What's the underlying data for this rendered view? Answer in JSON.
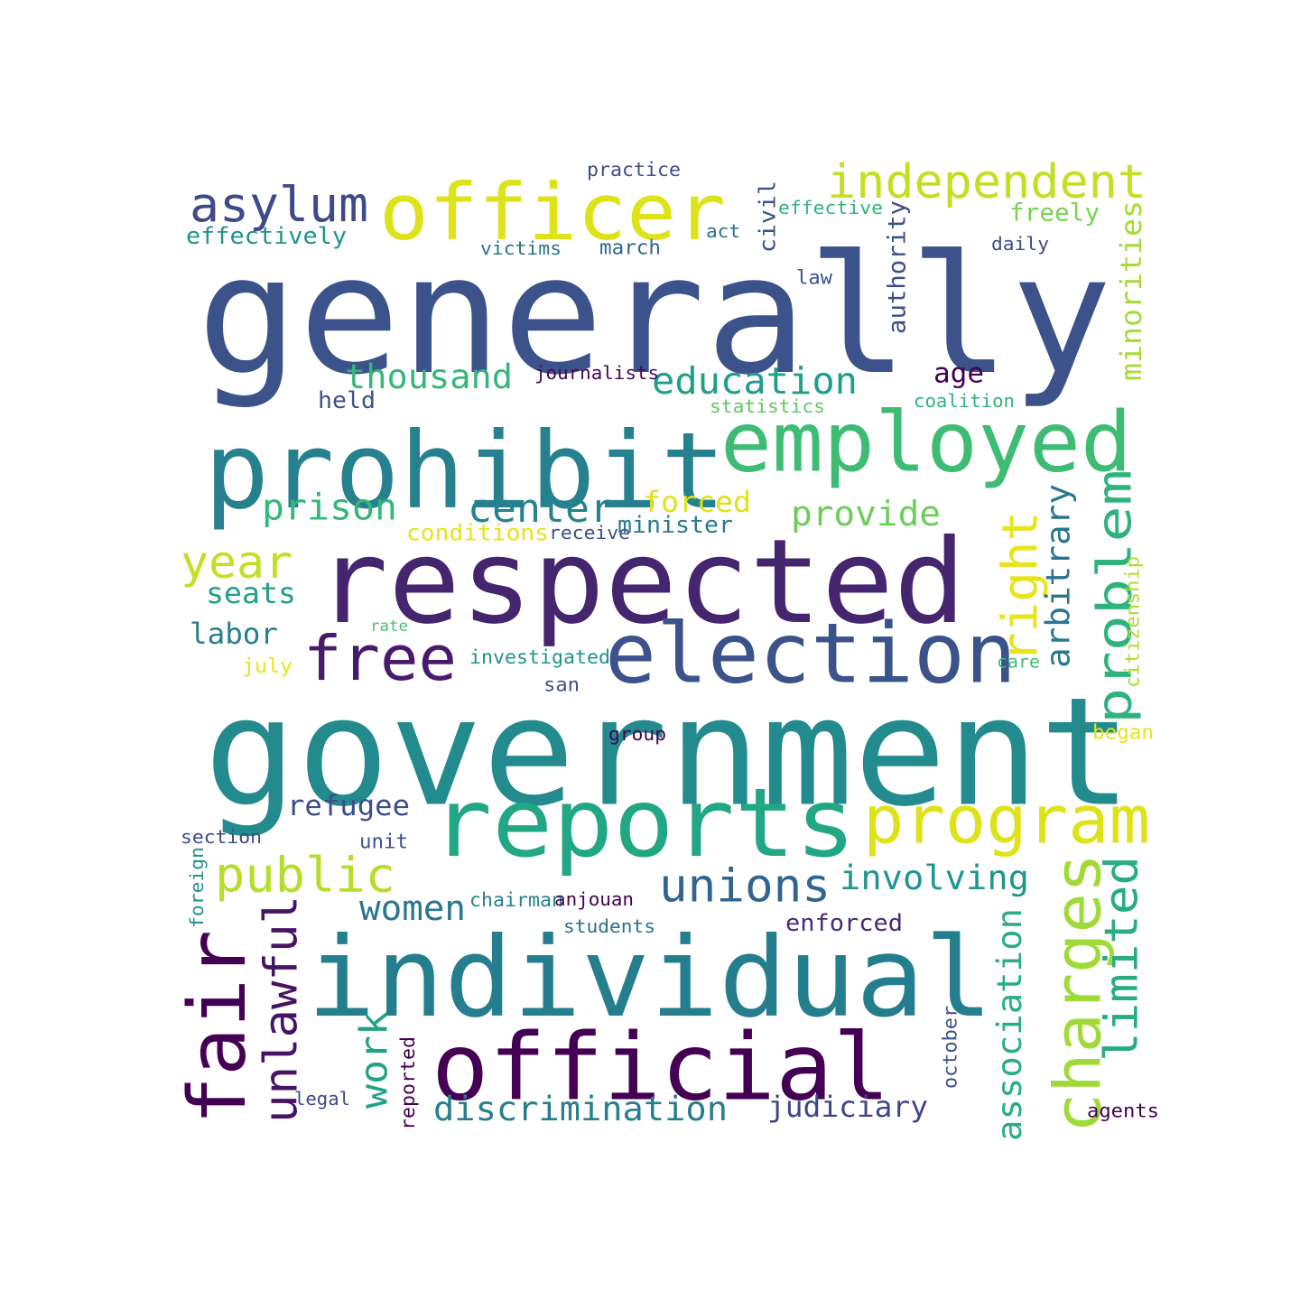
{
  "words": [
    {
      "text": "generally",
      "color": "#3b528b"
    },
    {
      "text": "government",
      "color": "#238a8d"
    },
    {
      "text": "respected",
      "color": "#46256f"
    },
    {
      "text": "individual",
      "color": "#257e8e"
    },
    {
      "text": "prohibit",
      "color": "#26818e"
    },
    {
      "text": "officer",
      "color": "#dde318"
    },
    {
      "text": "employed",
      "color": "#3fbc73"
    },
    {
      "text": "election",
      "color": "#3b528b"
    },
    {
      "text": "reports",
      "color": "#22a784"
    },
    {
      "text": "official",
      "color": "#440154"
    },
    {
      "text": "program",
      "color": "#dde318"
    },
    {
      "text": "fair",
      "color": "#440154"
    },
    {
      "text": "charges",
      "color": "#a0da39"
    },
    {
      "text": "free",
      "color": "#481a6c"
    },
    {
      "text": "independent",
      "color": "#c2df23"
    },
    {
      "text": "asylum",
      "color": "#3e4a89"
    },
    {
      "text": "public",
      "color": "#b5de2b"
    },
    {
      "text": "year",
      "color": "#c2df23"
    },
    {
      "text": "center",
      "color": "#25838e"
    },
    {
      "text": "unions",
      "color": "#32658e"
    },
    {
      "text": "unlawful",
      "color": "#471365"
    },
    {
      "text": "problem",
      "color": "#2eb37c"
    },
    {
      "text": "right",
      "color": "#e7e419"
    },
    {
      "text": "limited",
      "color": "#27ad81"
    },
    {
      "text": "association",
      "color": "#29af7f"
    },
    {
      "text": "education",
      "color": "#1f9e89"
    },
    {
      "text": "thousand",
      "color": "#35b779"
    },
    {
      "text": "prison",
      "color": "#35b779"
    },
    {
      "text": "provide",
      "color": "#6ccd5a"
    },
    {
      "text": "involving",
      "color": "#1f968b"
    },
    {
      "text": "discrimination",
      "color": "#277f8e"
    },
    {
      "text": "judiciary",
      "color": "#414487"
    },
    {
      "text": "women",
      "color": "#2a768e"
    },
    {
      "text": "work",
      "color": "#20a386"
    },
    {
      "text": "arbitrary",
      "color": "#2a768e"
    },
    {
      "text": "minorities",
      "color": "#a5db36"
    },
    {
      "text": "authority",
      "color": "#3e4c8a"
    },
    {
      "text": "refugee",
      "color": "#3e4c8a"
    },
    {
      "text": "seats",
      "color": "#1fa088"
    },
    {
      "text": "labor",
      "color": "#287d8e"
    },
    {
      "text": "effectively",
      "color": "#20938c"
    },
    {
      "text": "freely",
      "color": "#7ad151"
    },
    {
      "text": "forced",
      "color": "#dde318"
    },
    {
      "text": "minister",
      "color": "#287c8e"
    },
    {
      "text": "enforced",
      "color": "#482878"
    },
    {
      "text": "held",
      "color": "#3b528b"
    },
    {
      "text": "age",
      "color": "#440154"
    },
    {
      "text": "civil",
      "color": "#3b528b"
    },
    {
      "text": "practice",
      "color": "#3e4c8a"
    },
    {
      "text": "effective",
      "color": "#2fb47c"
    },
    {
      "text": "victims",
      "color": "#2c728e"
    },
    {
      "text": "march",
      "color": "#31688e"
    },
    {
      "text": "act",
      "color": "#2c718e"
    },
    {
      "text": "daily",
      "color": "#3e4c8a"
    },
    {
      "text": "law",
      "color": "#3b528b"
    },
    {
      "text": "journalists",
      "color": "#46075a"
    },
    {
      "text": "statistics",
      "color": "#5ec962"
    },
    {
      "text": "coalition",
      "color": "#2fb47c"
    },
    {
      "text": "conditions",
      "color": "#e7e419"
    },
    {
      "text": "receive",
      "color": "#3b528b"
    },
    {
      "text": "citizenship",
      "color": "#addc30"
    },
    {
      "text": "rate",
      "color": "#4ac16d"
    },
    {
      "text": "investigated",
      "color": "#20938c"
    },
    {
      "text": "july",
      "color": "#e7e419"
    },
    {
      "text": "care",
      "color": "#3dbc74"
    },
    {
      "text": "san",
      "color": "#3b528b"
    },
    {
      "text": "group",
      "color": "#440154"
    },
    {
      "text": "began",
      "color": "#e7e419"
    },
    {
      "text": "section",
      "color": "#3e4a89"
    },
    {
      "text": "unit",
      "color": "#3b528b"
    },
    {
      "text": "foreign",
      "color": "#20938c"
    },
    {
      "text": "chairman",
      "color": "#26828e"
    },
    {
      "text": "anjouan",
      "color": "#440154"
    },
    {
      "text": "students",
      "color": "#2c718e"
    },
    {
      "text": "legal",
      "color": "#3e4a89"
    },
    {
      "text": "reported",
      "color": "#440154"
    },
    {
      "text": "october",
      "color": "#3b528b"
    },
    {
      "text": "agents",
      "color": "#440154"
    }
  ]
}
